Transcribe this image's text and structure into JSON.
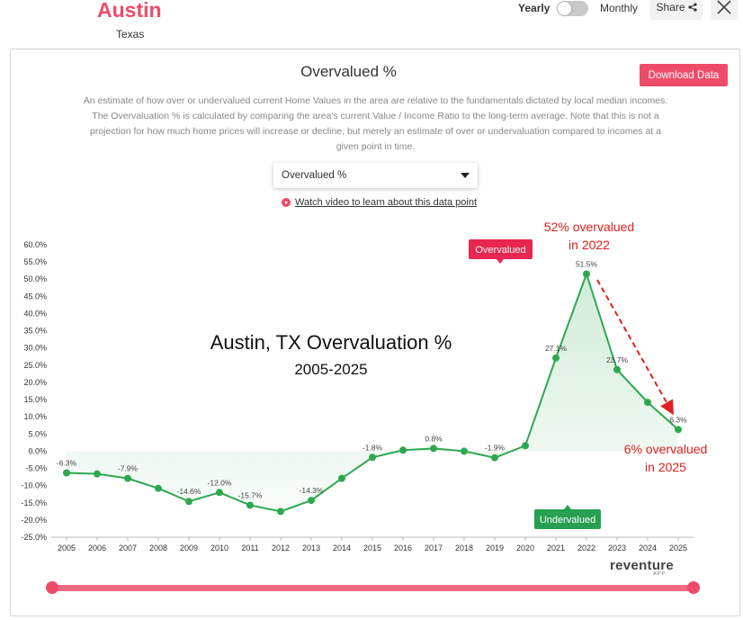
{
  "header": {
    "city": "Austin",
    "state": "Texas",
    "toggle_left": "Yearly",
    "toggle_right": "Monthly",
    "share_label": "Share",
    "close_icon": "close-icon",
    "share_icon": "share-icon"
  },
  "panel": {
    "title": "Overvalued %",
    "download_label": "Download Data",
    "description": "An estimate of how over or undervalued current Home Values in the area are relative to the fundamentals dictated by local median incomes. The Overvaluation % is calculated by comparing the area's current Value / Income Ratio to the long-term average. Note that this is not a projection for how much home prices will increase or decline, but merely an estimate of over or undervaluation compared to incomes at a given point in time.",
    "dropdown_value": "Overvalued %",
    "video_link": "Watch video to learn about this data point",
    "logo": "reventure",
    "logo_sub": "APP"
  },
  "colors": {
    "accent": "#ee4b6a",
    "overvalued_badge": "#e8264f",
    "undervalued_badge": "#27a151",
    "line": "#2ea84f",
    "annotation": "#e02020"
  },
  "chart_data": {
    "type": "line",
    "x": [
      "2005",
      "2006",
      "2007",
      "2008",
      "2009",
      "2010",
      "2011",
      "2012",
      "2013",
      "2014",
      "2015",
      "2016",
      "2017",
      "2018",
      "2019",
      "2020",
      "2021",
      "2022",
      "2023",
      "2024",
      "2025"
    ],
    "series": [
      {
        "values": [
          -6.3,
          -6.6,
          -7.9,
          -10.8,
          -14.6,
          -12.0,
          -15.7,
          -17.5,
          -14.3,
          -7.9,
          -1.8,
          0.3,
          0.8,
          0.0,
          -1.9,
          1.6,
          27.1,
          51.5,
          23.7,
          14.2,
          6.3
        ]
      }
    ],
    "data_labels": [
      {
        "x": "2005",
        "text": "-6.3%"
      },
      {
        "x": "2007",
        "text": "-7.9%"
      },
      {
        "x": "2009",
        "text": "-14.6%"
      },
      {
        "x": "2010",
        "text": "-12.0%"
      },
      {
        "x": "2011",
        "text": "-15.7%"
      },
      {
        "x": "2013",
        "text": "-14.3%"
      },
      {
        "x": "2015",
        "text": "-1.8%"
      },
      {
        "x": "2017",
        "text": "0.8%"
      },
      {
        "x": "2019",
        "text": "-1.9%"
      },
      {
        "x": "2021",
        "text": "27.1%"
      },
      {
        "x": "2022",
        "text": "51.5%"
      },
      {
        "x": "2023",
        "text": "23.7%"
      },
      {
        "x": "2025",
        "text": "6.3%"
      }
    ],
    "yticks": [
      "60.0%",
      "55.0%",
      "50.0%",
      "45.0%",
      "40.0%",
      "35.0%",
      "30.0%",
      "25.0%",
      "20.0%",
      "15.0%",
      "10.0%",
      "5.0%",
      "0.0%",
      "-5.0%",
      "-10.0%",
      "-15.0%",
      "-20.0%",
      "-25.0%"
    ],
    "ylim": [
      -25,
      60
    ],
    "grid": false,
    "overlay_title": "Austin, TX Overvaluation %",
    "overlay_subtitle": "2005-2025",
    "badge_over": "Overvalued",
    "badge_under": "Undervalued",
    "note_top_line1": "52% overvalued",
    "note_top_line2": "in 2022",
    "note_bottom_line1": "6% overvalued",
    "note_bottom_line2": "in 2025"
  }
}
